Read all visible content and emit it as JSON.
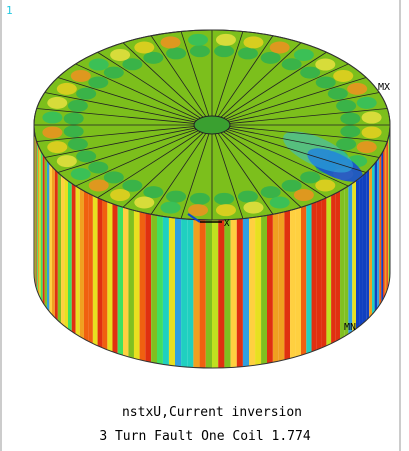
{
  "window_number": "1",
  "labels": {
    "max": "MX",
    "min": "MN",
    "axis": "X"
  },
  "caption": {
    "line1": "nstxU,Current inversion",
    "line2": "3 Turn Fault One Coil 1.774"
  }
}
